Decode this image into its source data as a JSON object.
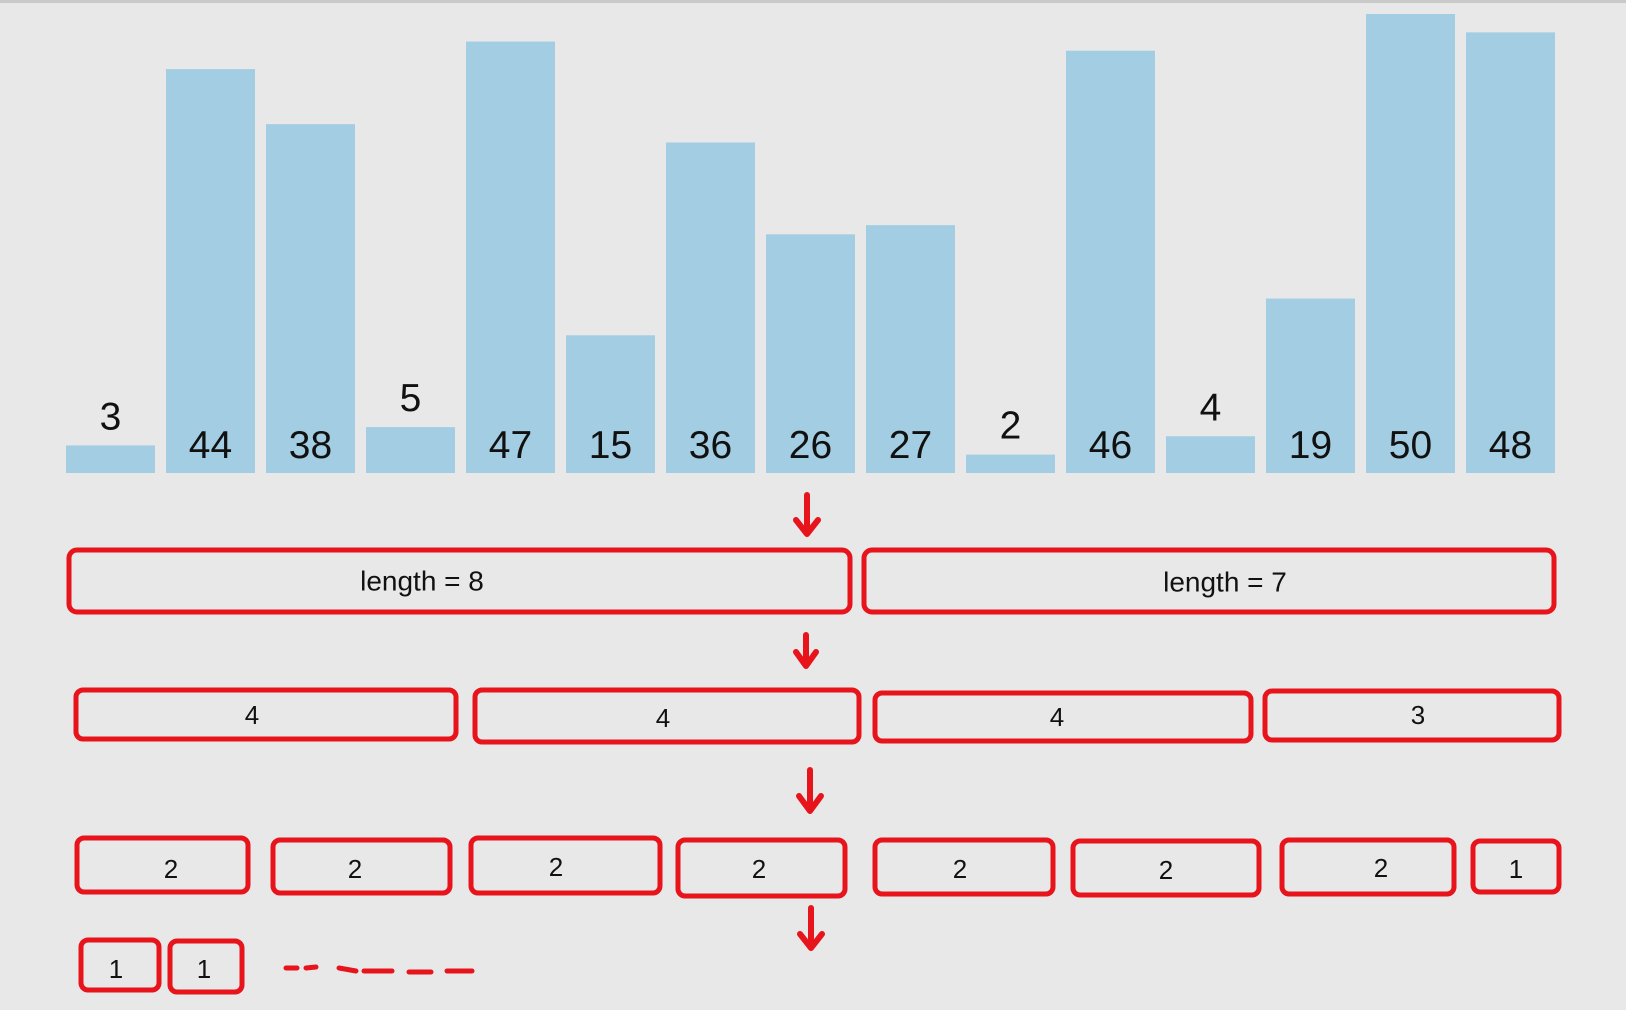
{
  "chart_data": {
    "type": "bar",
    "values": [
      3,
      44,
      38,
      5,
      47,
      15,
      36,
      26,
      27,
      2,
      46,
      4,
      19,
      50,
      48
    ],
    "bar_color": "#a3cde2",
    "ylim": [
      0,
      50
    ]
  },
  "levels": [
    {
      "boxes": [
        "length = 8",
        "length = 7"
      ]
    },
    {
      "boxes": [
        "4",
        "4",
        "4",
        "3"
      ]
    },
    {
      "boxes": [
        "2",
        "2",
        "2",
        "2",
        "2",
        "2",
        "2",
        "1"
      ]
    },
    {
      "boxes": [
        "1",
        "1"
      ]
    }
  ],
  "colors": {
    "accent": "#e8141c",
    "background": "#e8e8e8",
    "text": "#111111"
  }
}
